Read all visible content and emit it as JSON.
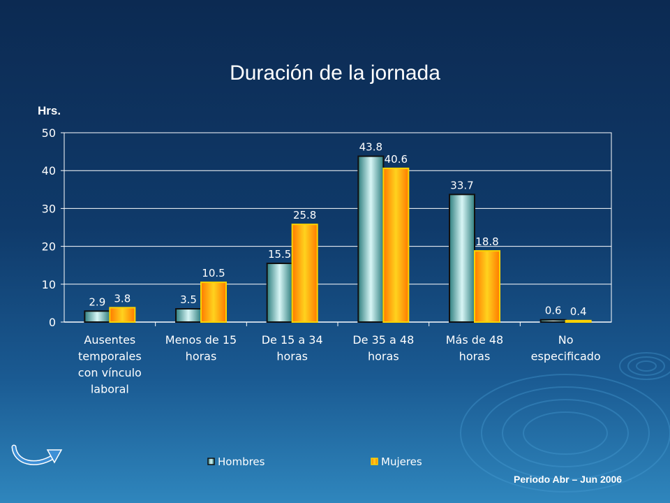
{
  "title": "Duración de la jornada",
  "y_unit": "Hrs.",
  "period": "Periodo Abr – Jun 2006",
  "chart_data": {
    "type": "bar",
    "title": "Duración de la jornada",
    "ylabel": "Hrs.",
    "xlabel": "",
    "ylim": [
      0,
      50
    ],
    "yticks": [
      0,
      10,
      20,
      30,
      40,
      50
    ],
    "grid": true,
    "legend_position": "bottom",
    "categories": [
      "Ausentes temporales con vínculo laboral",
      "Menos de 15 horas",
      "De 15 a 34 horas",
      "De 35 a 48 horas",
      "Más de 48 horas",
      "No especificado"
    ],
    "category_lines": [
      [
        "Ausentes",
        "temporales",
        "con vínculo",
        "laboral"
      ],
      [
        "Menos de 15",
        "horas"
      ],
      [
        "De 15 a 34",
        "horas"
      ],
      [
        "De 35 a 48",
        "horas"
      ],
      [
        "Más de 48",
        "horas"
      ],
      [
        "No",
        "especificado"
      ]
    ],
    "series": [
      {
        "name": "Hombres",
        "values": [
          2.9,
          3.5,
          15.5,
          43.8,
          33.7,
          0.6
        ],
        "labels": [
          "2.9",
          "3.5",
          "15.5",
          "43.8",
          "33.7",
          "0.6"
        ],
        "color": "#5fb8b8"
      },
      {
        "name": "Mujeres",
        "values": [
          3.8,
          10.5,
          25.8,
          40.6,
          18.8,
          0.4
        ],
        "labels": [
          "3.8",
          "10.5",
          "25.8",
          "40.6",
          "18.8",
          "0.4"
        ],
        "color": "#ff9a1a"
      }
    ]
  }
}
